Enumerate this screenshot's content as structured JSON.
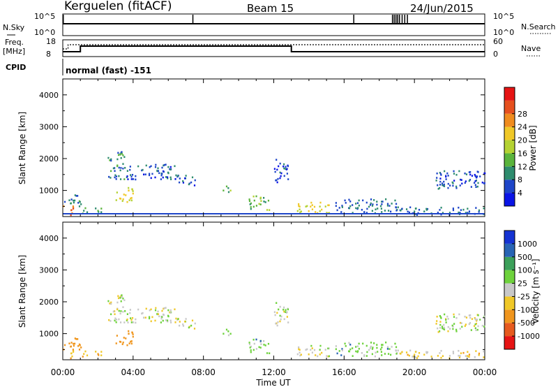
{
  "header": {
    "station": "Kerguelen (fitACF)",
    "beam": "Beam 15",
    "date": "24/Jun/2015"
  },
  "top_panels": {
    "nsky_label": "N.Sky",
    "nsky_ticks": [
      "10^5",
      "10^0"
    ],
    "nsearch_label": "N.Search",
    "nsearch_ticks": [
      "10^5",
      "10^0"
    ],
    "freq_label_1": "Freq.",
    "freq_label_2": "[MHz]",
    "freq_ticks": [
      "18",
      "8"
    ],
    "nave_label": "Nave",
    "nave_ticks": [
      "60",
      "0"
    ],
    "cpid_label": "CPID",
    "cpid_value": "normal (fast) -151",
    "nsky_spikes_hours": [
      0.03,
      7.4,
      16.55,
      18.75,
      18.85,
      18.95,
      19.05,
      19.15,
      19.3,
      19.45,
      19.6
    ],
    "freq_step_hours": [
      1.0,
      13.0
    ],
    "freq_levels": [
      "low",
      "high",
      "low"
    ]
  },
  "time_axis": {
    "label": "Time UT",
    "ticks": [
      "00:00",
      "04:00",
      "08:00",
      "12:00",
      "16:00",
      "20:00",
      "00:00"
    ]
  },
  "power_panel": {
    "ylabel": "Slant Range [km]",
    "yticks": [
      "1000",
      "2000",
      "3000",
      "4000"
    ],
    "colorbar_label": "Power [dB]",
    "colorbar_ticks": [
      "4",
      "8",
      "12",
      "16",
      "20",
      "24",
      "28"
    ],
    "colorbar_colors": [
      "#0a14e6",
      "#1e46c8",
      "#2e8c6e",
      "#5ab43c",
      "#b4d232",
      "#f0c828",
      "#f08c1e",
      "#e6501e",
      "#e61414"
    ]
  },
  "velocity_panel": {
    "ylabel": "Slant Range [km]",
    "yticks": [
      "1000",
      "2000",
      "3000",
      "4000"
    ],
    "colorbar_label": "Velocity [m s⁻¹]",
    "colorbar_ticks": [
      "1000",
      "500",
      "100",
      "25",
      "-25",
      "-100",
      "-500",
      "-1000"
    ],
    "colorbar_colors": [
      "#1432d2",
      "#2864b4",
      "#3ca05a",
      "#6ed23c",
      "#c8c8c8",
      "#f0c828",
      "#f0961e",
      "#e65a1e",
      "#e61414"
    ]
  },
  "chart_data": {
    "type": "heatmap",
    "x_range_hours": [
      0,
      24
    ],
    "y_range_km": [
      180,
      4500
    ],
    "echo_regions": [
      {
        "t0": 0.0,
        "t1": 0.6,
        "r0": 180,
        "r1": 500,
        "power": 28,
        "velocity": -100
      },
      {
        "t0": 0.0,
        "t1": 1.0,
        "r0": 450,
        "r1": 850,
        "power": 10,
        "velocity": -300
      },
      {
        "t0": 1.0,
        "t1": 2.3,
        "r0": 250,
        "r1": 420,
        "power": 12,
        "velocity": -100
      },
      {
        "t0": 2.5,
        "t1": 3.5,
        "r0": 1300,
        "r1": 2200,
        "power": 10,
        "velocity": 0
      },
      {
        "t0": 3.0,
        "t1": 4.0,
        "r0": 600,
        "r1": 1100,
        "power": 20,
        "velocity": -300
      },
      {
        "t0": 3.5,
        "t1": 6.5,
        "r0": 1300,
        "r1": 1800,
        "power": 6,
        "velocity": 0
      },
      {
        "t0": 6.5,
        "t1": 7.5,
        "r0": 1100,
        "r1": 1500,
        "power": 6,
        "velocity": 0
      },
      {
        "t0": 9.0,
        "t1": 9.6,
        "r0": 900,
        "r1": 1100,
        "power": 14,
        "velocity": 50
      },
      {
        "t0": 10.5,
        "t1": 11.8,
        "r0": 350,
        "r1": 800,
        "power": 14,
        "velocity": 50
      },
      {
        "t0": 12.0,
        "t1": 12.8,
        "r0": 1200,
        "r1": 2000,
        "power": 6,
        "velocity": 0
      },
      {
        "t0": 13.3,
        "t1": 15.2,
        "r0": 250,
        "r1": 600,
        "power": 20,
        "velocity": 0
      },
      {
        "t0": 15.5,
        "t1": 19.0,
        "r0": 250,
        "r1": 700,
        "power": 8,
        "velocity": 50
      },
      {
        "t0": 19.0,
        "t1": 24.0,
        "r0": 200,
        "r1": 450,
        "power": 8,
        "velocity": -50
      },
      {
        "t0": 21.0,
        "t1": 24.0,
        "r0": 1000,
        "r1": 1600,
        "power": 6,
        "velocity": 0
      }
    ]
  }
}
